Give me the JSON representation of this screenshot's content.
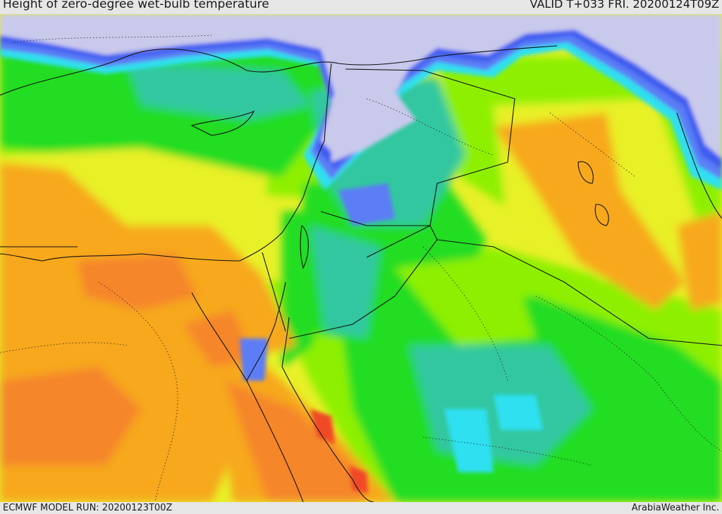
{
  "header": {
    "title": "Height of zero-degree wet-bulb temperature",
    "valid": "VALID T+033 FRI. 20200124T09Z"
  },
  "footer": {
    "model_run": "ECMWF MODEL RUN: 20200123T00Z",
    "credit": "ArabiaWeather Inc."
  },
  "colors": {
    "snow_lavender": "#c9c9ec",
    "deep_blue": "#3d5cf0",
    "blue": "#5b7df5",
    "cyan": "#2ee0f0",
    "teal": "#33c7a0",
    "green": "#22dd22",
    "light_green": "#8ef000",
    "yellow": "#e8f028",
    "orange": "#f7a81a",
    "dark_orange": "#f5862a",
    "red": "#f04a26",
    "border_line": "#111111"
  }
}
